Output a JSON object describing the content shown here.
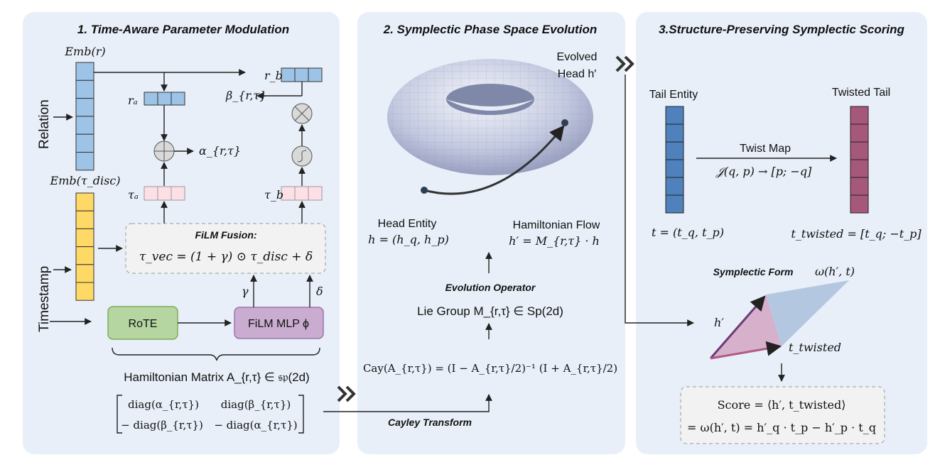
{
  "panel1": {
    "title": "1. Time-Aware Parameter Modulation",
    "emb_r": "Emb(r)",
    "relation": "Relation",
    "r_a": "rₐ",
    "r_b": "r_b",
    "beta": "β_{r,τ}",
    "alpha": "α_{r,τ}",
    "emb_tau": "Emb(τ_disc)",
    "tau_a": "τₐ",
    "tau_b": "τ_b",
    "timestamp": "Timestamp",
    "film_fusion_title": "FiLM Fusion:",
    "film_fusion_formula": "τ_vec = (1 + γ) ⊙ τ_disc + δ",
    "gamma": "γ",
    "delta": "δ",
    "rote": "RoTE",
    "film_mlp": "FiLM MLP ϕ",
    "hamiltonian": "Hamiltonian Matrix A_{r,τ} ∈ 𝔰𝔭(2d)",
    "matrix": [
      [
        "diag(α_{r,τ})",
        "diag(β_{r,τ})"
      ],
      [
        "− diag(β_{r,τ})",
        "− diag(α_{r,τ})"
      ]
    ],
    "operators": {
      "add": "plus-circle",
      "multiply": "times-circle",
      "activation": "sigmoid-circle"
    }
  },
  "panel2": {
    "title": "2. Symplectic Phase Space Evolution",
    "evolved_line1": "Evolved",
    "evolved_line2": "Head h′",
    "head_entity": "Head Entity",
    "head_formula": "h = (h_q, h_p)",
    "flow": "Hamiltonian Flow",
    "flow_formula": "h′ = M_{r,τ} · h",
    "evolution_operator": "Evolution Operator",
    "lie_group": "Lie Group  M_{r,τ} ∈ Sp(2d)",
    "cayley_formula": "Cay(A_{r,τ}) = (I − A_{r,τ}/2)⁻¹ (I + A_{r,τ}/2)",
    "cayley_transform": "Cayley Transform"
  },
  "panel3": {
    "title": "3.Structure-Preserving Symplectic Scoring",
    "tail_entity": "Tail Entity",
    "twisted_tail": "Twisted Tail",
    "twist_map": "Twist Map",
    "twist_formula": "𝒥(q, p) → [p; −q]",
    "tail_formula": "t = (t_q, t_p)",
    "twisted_formula": "t_twisted = [t_q; −t_p]",
    "symplectic_form": "Symplectic Form",
    "symplectic_formula": "ω(h′, t)",
    "h_prime": "h′",
    "t_twisted": "t_twisted",
    "score_line1": "Score = ⟨h′, t_twisted⟩",
    "score_line2": "= ω(h′, t) = h′_q · t_p − h′_p · t_q"
  },
  "colors": {
    "panel_bg": "#e8eff8",
    "relation_blue": "#9dc3e6",
    "timestamp_yellow": "#ffd966",
    "tau_pink": "#fde0e6",
    "rote_green": "#b5d6a0",
    "film_purple": "#c9acd0",
    "tail_blue": "#4f81bd",
    "twisted_magenta": "#a5587a"
  }
}
